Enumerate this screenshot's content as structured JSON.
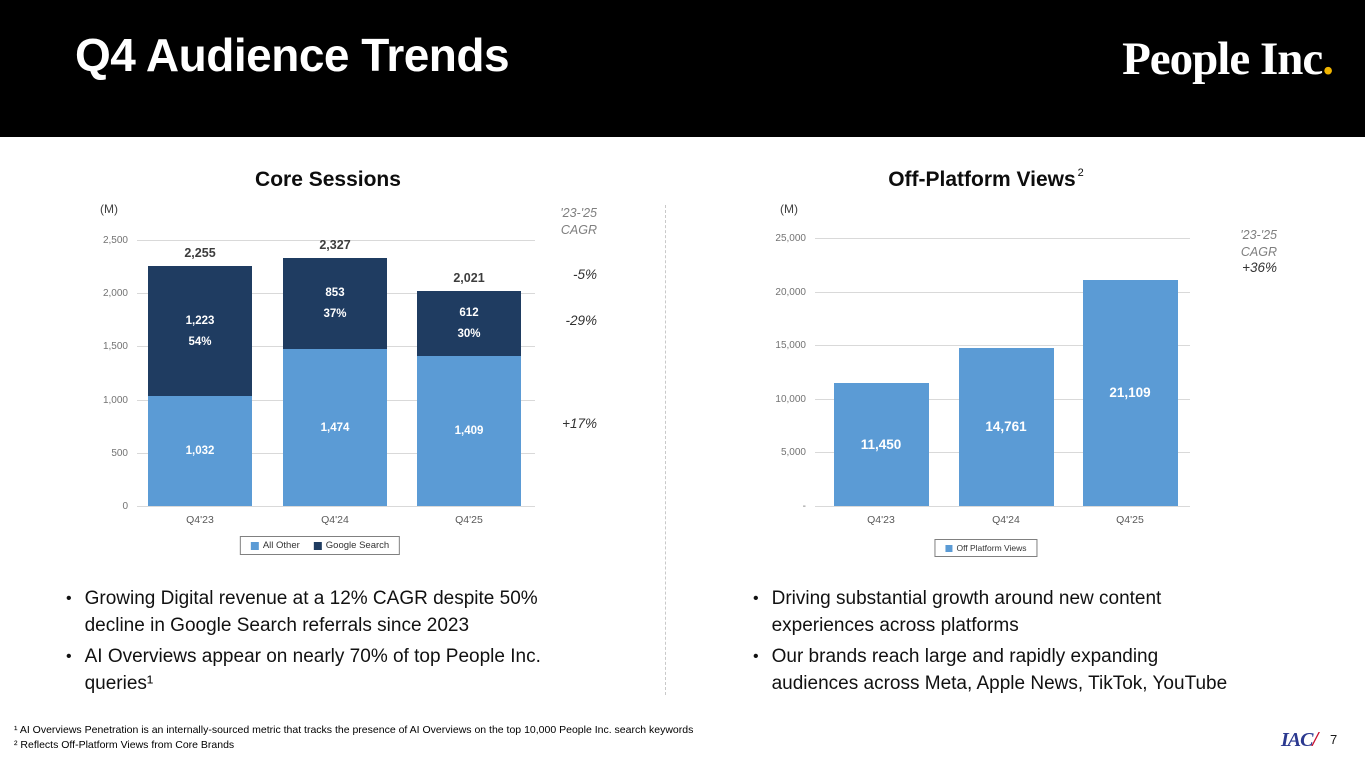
{
  "header": {
    "title": "Q4 Audience Trends",
    "logo_text": "People Inc",
    "logo_dot": "."
  },
  "chart_data": [
    {
      "type": "bar",
      "stacked": true,
      "title": "Core Sessions",
      "unit_label": "(M)",
      "categories": [
        "Q4'23",
        "Q4'24",
        "Q4'25"
      ],
      "series": [
        {
          "name": "All Other",
          "color": "#5B9BD5",
          "values": [
            1032,
            1474,
            1409
          ],
          "value_labels": [
            "1,032",
            "1,474",
            "1,409"
          ]
        },
        {
          "name": "Google Search",
          "color": "#1F3C61",
          "values": [
            1223,
            853,
            612
          ],
          "value_labels": [
            "1,223",
            "853",
            "612"
          ],
          "percent_labels": [
            "54%",
            "37%",
            "30%"
          ]
        }
      ],
      "totals": [
        2255,
        2327,
        2021
      ],
      "total_labels": [
        "2,255",
        "2,327",
        "2,021"
      ],
      "ylim": [
        0,
        2500
      ],
      "ytick_labels": [
        "2,500",
        "2,000",
        "1,500",
        "1,000",
        "500",
        "0"
      ],
      "grid": true,
      "legend_position": "bottom",
      "cagr_header": "'23-'25\nCAGR",
      "cagr_values": [
        "-5%",
        "-29%",
        "+17%"
      ]
    },
    {
      "type": "bar",
      "stacked": false,
      "title": "Off-Platform Views",
      "title_superscript": "2",
      "unit_label": "(M)",
      "categories": [
        "Q4'23",
        "Q4'24",
        "Q4'25"
      ],
      "series": [
        {
          "name": "Off Platform Views",
          "color": "#5B9BD5",
          "values": [
            11450,
            14761,
            21109
          ],
          "value_labels": [
            "11,450",
            "14,761",
            "21,109"
          ]
        }
      ],
      "ylim": [
        0,
        25000
      ],
      "ytick_labels": [
        "25,000",
        "20,000",
        "15,000",
        "10,000",
        "5,000",
        "-"
      ],
      "grid": true,
      "legend_position": "bottom",
      "cagr_header": "'23-'25\nCAGR",
      "cagr_values": [
        "+36%"
      ]
    }
  ],
  "bullets_left": [
    [
      "Growing Digital revenue at a 12% CAGR despite 50%",
      "decline in Google Search referrals since 2023"
    ],
    [
      "AI Overviews appear on nearly 70% of top People Inc.",
      "queries¹"
    ]
  ],
  "bullets_right": [
    [
      "Driving substantial growth around new content",
      "experiences across platforms"
    ],
    [
      "Our brands reach large and rapidly expanding",
      "audiences across Meta, Apple News, TikTok, YouTube"
    ]
  ],
  "footnotes": [
    "¹ AI Overviews Penetration is an internally-sourced metric that tracks the presence of AI Overviews on the top 10,000 People Inc. search keywords",
    "² Reflects Off-Platform Views from Core Brands"
  ],
  "footer": {
    "iac_logo": "IAC",
    "iac_slash": "/",
    "page_number": "7"
  },
  "colors": {
    "accent_blue": "#5B9BD5",
    "navy": "#1F3C61",
    "logo_dot_yellow": "#F0B400",
    "iac_navy": "#2B3990",
    "iac_red": "#C8102E"
  }
}
